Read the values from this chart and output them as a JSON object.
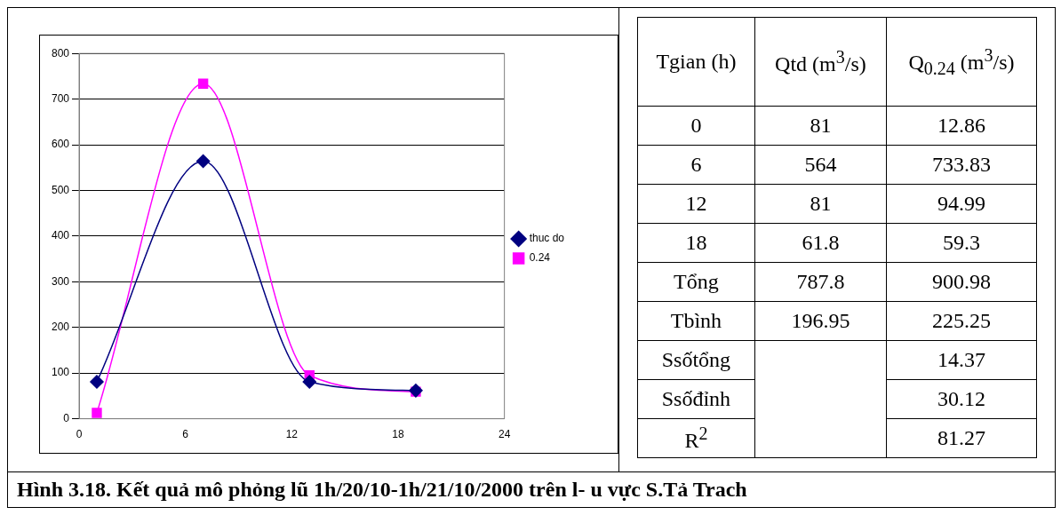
{
  "chart_data": {
    "type": "line",
    "x": [
      1,
      7,
      13,
      19
    ],
    "xlim": [
      0,
      24
    ],
    "xticks": [
      0,
      6,
      12,
      18,
      24
    ],
    "ylim": [
      0,
      800
    ],
    "yticks": [
      0,
      100,
      200,
      300,
      400,
      500,
      600,
      700,
      800
    ],
    "grid": "y",
    "legend": "right",
    "series": [
      {
        "name": "thuc do",
        "color": "#000080",
        "marker": "diamond",
        "values": [
          81,
          564,
          81,
          61.8
        ]
      },
      {
        "name": "0.24",
        "color": "#ff00ff",
        "marker": "square",
        "values": [
          12.86,
          733.83,
          94.99,
          59.3
        ]
      }
    ],
    "annotations": [
      "Hình 3.18. Kết quả mô phỏng lũ 1h/20/10-1h/21/10/2000 trên l- u vực S.Tả Trach",
      "Tgian (h)",
      "Qtd (m$^{3}$/s)",
      "Q$_{0.24}$ (m$^{3}$/s)",
      "0",
      "81",
      "12.86",
      "6",
      "564",
      "733.83",
      "12",
      "81",
      "94.99",
      "18",
      "61.8",
      "59.3",
      "Tổng",
      "787.8",
      "900.98",
      "Tbình",
      "196.95",
      "225.25",
      "Ssốtổng",
      "14.37",
      "Ssốđỉnh",
      "30.12",
      "R$^{2}$",
      "81.27"
    ]
  }
}
